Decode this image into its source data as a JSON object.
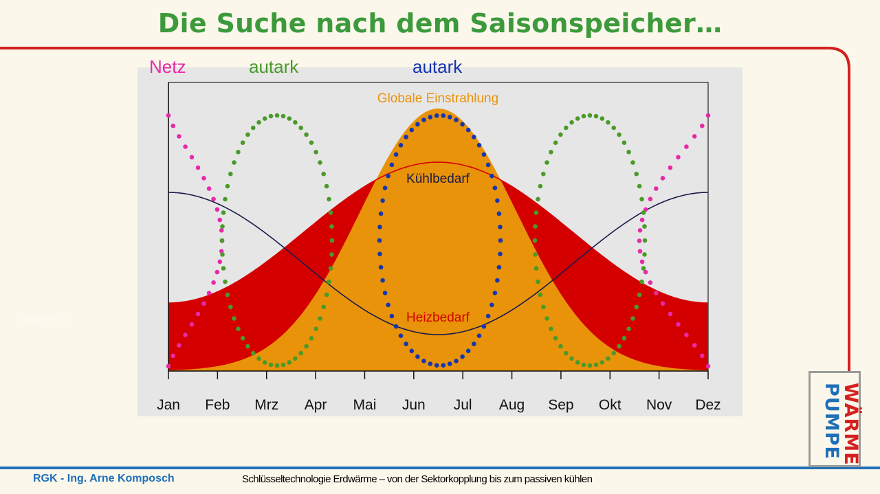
{
  "slide": {
    "title": "Die Suche nach dem Saisonspeicher…",
    "footer_left": "RGK - Ing. Arne Komposch",
    "footer_center": "Schlüsseltechnologie Erdwärme – von der Sektorkopplung bis zum passiven kühlen",
    "watermark": "www.krv.at",
    "logo": {
      "line1": "WÄRME",
      "line2": "PUMPE",
      "color1": "#d42020",
      "color2": "#1f6fb8"
    }
  },
  "legend": [
    {
      "label": "Netz",
      "color": "#e62aa8"
    },
    {
      "label": "autark",
      "color": "#4a9a2a"
    },
    {
      "label": "autark",
      "color": "#1636b0"
    }
  ],
  "chart_data": {
    "type": "area",
    "categories": [
      "Jan",
      "Feb",
      "Mrz",
      "Apr",
      "Mai",
      "Jun",
      "Jul",
      "Aug",
      "Sep",
      "Okt",
      "Nov",
      "Dez"
    ],
    "series": [
      {
        "name": "Globale Einstrahlung",
        "color": "#e8930a"
      },
      {
        "name": "Kühlbedarf",
        "color": "#1a1a4a"
      },
      {
        "name": "Heizbedarf",
        "color": "#d40000"
      }
    ],
    "colors": {
      "heating_fill": "#d40000",
      "plot_bg": "#e6e6e6"
    }
  }
}
